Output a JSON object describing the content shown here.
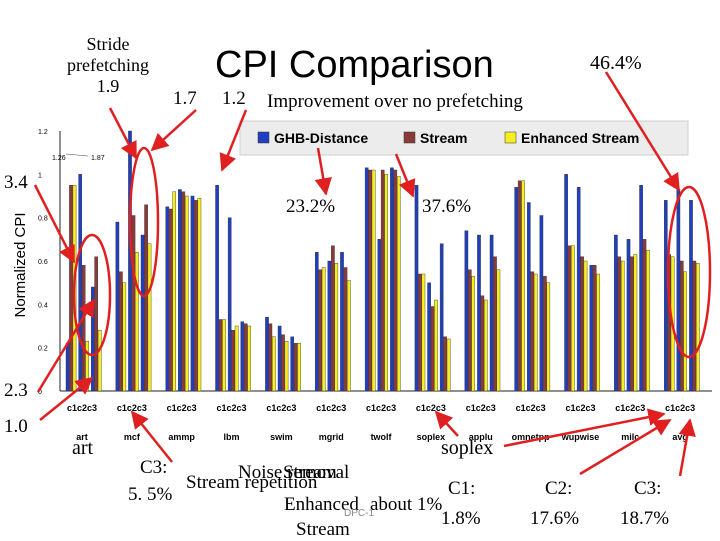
{
  "slide": {
    "title": "CPI Comparison",
    "subtitle": "Improvement over no prefetching",
    "notes": {
      "stride_line1": "Stride",
      "stride_line2": "prefetching",
      "stride_cpi": "1.9",
      "tall_values_1": "1.7",
      "tall_values_2": "1.2",
      "pct_right": "46.4%",
      "pct_mid1": "23.2%",
      "pct_mid2": "37.6%",
      "left_high": "3.4",
      "left_low1": "2.3",
      "left_low2": "1.0",
      "art": "art",
      "soplex": "soplex",
      "c3_label": "C3:",
      "c3_pct": "5. 5%",
      "stream_repetition": "Stream repetition",
      "noise_removal": "Noise removal",
      "stream_word": "Stream",
      "enhanced_word": "Enhanced",
      "stream_bottom": "Stream",
      "about": "about 1%",
      "dpc": "DPC-1",
      "c1_label": "C1:",
      "c1_pct": "1.8%",
      "c2_label": "C2:",
      "c2_pct": "17.6%",
      "c3b_label": "C3:",
      "c3b_pct": "18.7%"
    },
    "colors": {
      "arrow": "#e02020",
      "ghb": "#1f3fbf",
      "stream": "#8b3a3a",
      "enhanced": "#f5ee22"
    }
  },
  "chart_data": {
    "type": "bar",
    "ylabel": "Normalized CPI",
    "ylim": [
      0,
      1.2
    ],
    "yticks": [
      "0",
      "0.2",
      "0.4",
      "0.6",
      "0.8",
      "1",
      "1.2"
    ],
    "cap_annotations": [
      "1.26",
      "1.87"
    ],
    "legend": [
      "GHB-Distance",
      "Stream",
      "Enhanced Stream"
    ],
    "benchmarks": [
      "art",
      "mcf",
      "ammp",
      "lbm",
      "swim",
      "mgrid",
      "twolf",
      "soplex",
      "applu",
      "omnetpp",
      "wupwise",
      "milc",
      "avg"
    ],
    "subcategories": [
      "c1",
      "c2",
      "c3"
    ],
    "tick_label": "c1c2c3",
    "series": [
      {
        "name": "GHB-Distance",
        "values": [
          [
            0.22,
            1.0,
            0.48
          ],
          [
            0.78,
            1.2,
            0.72
          ],
          [
            0.85,
            0.93,
            0.9
          ],
          [
            0.95,
            0.8,
            0.32
          ],
          [
            0.34,
            0.3,
            0.25
          ],
          [
            0.64,
            0.6,
            0.64
          ],
          [
            1.03,
            0.7,
            1.03
          ],
          [
            0.95,
            0.5,
            0.68
          ],
          [
            0.74,
            0.72,
            0.72
          ],
          [
            0.94,
            0.87,
            0.81
          ],
          [
            1.0,
            0.94,
            0.58
          ],
          [
            0.72,
            0.7,
            0.95
          ],
          [
            0.88,
            0.93,
            0.88
          ]
        ]
      },
      {
        "name": "Stream",
        "values": [
          [
            0.95,
            0.58,
            0.62
          ],
          [
            0.55,
            0.81,
            0.86
          ],
          [
            0.84,
            0.92,
            0.88
          ],
          [
            0.33,
            0.28,
            0.31
          ],
          [
            0.31,
            0.26,
            0.22
          ],
          [
            0.56,
            0.67,
            0.57
          ],
          [
            1.02,
            1.02,
            1.02
          ],
          [
            0.54,
            0.39,
            0.25
          ],
          [
            0.56,
            0.44,
            0.62
          ],
          [
            0.97,
            0.55,
            0.53
          ],
          [
            0.67,
            0.62,
            0.58
          ],
          [
            0.62,
            0.62,
            0.7
          ],
          [
            0.63,
            0.6,
            0.6
          ]
        ]
      },
      {
        "name": "Enhanced Stream",
        "values": [
          [
            0.95,
            0.23,
            0.28
          ],
          [
            0.5,
            0.64,
            0.68
          ],
          [
            0.92,
            0.9,
            0.89
          ],
          [
            0.33,
            0.3,
            0.3
          ],
          [
            0.25,
            0.23,
            0.22
          ],
          [
            0.57,
            0.59,
            0.51
          ],
          [
            1.02,
            1.0,
            0.99
          ],
          [
            0.54,
            0.42,
            0.24
          ],
          [
            0.53,
            0.42,
            0.56
          ],
          [
            0.97,
            0.54,
            0.5
          ],
          [
            0.67,
            0.6,
            0.54
          ],
          [
            0.6,
            0.63,
            0.65
          ],
          [
            0.62,
            0.55,
            0.59
          ]
        ]
      }
    ]
  }
}
